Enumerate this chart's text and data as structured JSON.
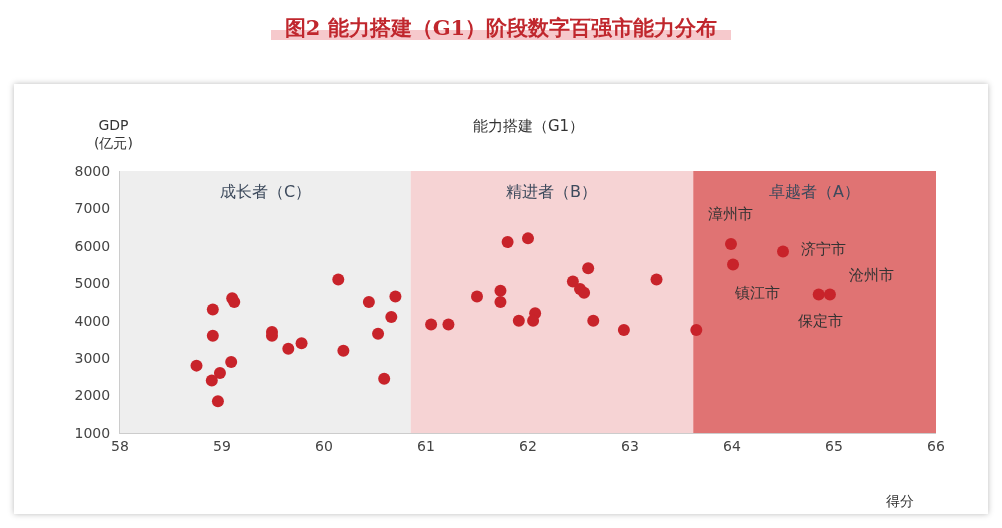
{
  "chart_data": {
    "type": "scatter",
    "title": "图2 能力搭建（G1）阶段数字百强市能力分布",
    "subtitle": "能力搭建（G1）",
    "xlabel": "得分",
    "ylabel": "GDP\n(亿元)",
    "x": [
      58.75,
      58.91,
      58.91,
      59.1,
      59.12,
      59.09,
      58.9,
      58.98,
      58.96,
      59.49,
      59.49,
      59.65,
      59.78,
      60.14,
      60.19,
      60.44,
      60.7,
      60.53,
      60.66,
      60.59,
      61.05,
      61.22,
      61.5,
      61.8,
      62.0,
      61.73,
      61.73,
      61.91,
      62.07,
      62.05,
      62.44,
      62.51,
      62.55,
      62.59,
      62.64,
      62.94,
      63.26,
      63.65,
      63.99,
      64.01,
      64.5,
      64.85,
      64.96
    ],
    "series": [
      {
        "color": "#c8232a",
        "values": [
          2800,
          4300,
          3600,
          4600,
          4500,
          2900,
          2400,
          2600,
          1850,
          3700,
          3600,
          3250,
          3400,
          5100,
          3200,
          4500,
          4650,
          3650,
          4100,
          2450,
          3900,
          3900,
          4650,
          6100,
          6200,
          4800,
          4500,
          4000,
          4200,
          4000,
          5050,
          4850,
          4750,
          5400,
          4000,
          3750,
          5100,
          3750,
          6050,
          5500,
          5850,
          4700,
          4700
        ]
      }
    ],
    "marker": "circle",
    "xlim": [
      58,
      66
    ],
    "ylim": [
      1000,
      8000
    ],
    "xticks": [
      58,
      59,
      60,
      61,
      62,
      63,
      64,
      65,
      66
    ],
    "yticks": [
      1000,
      2000,
      3000,
      4000,
      5000,
      6000,
      7000,
      8000
    ],
    "grid": false,
    "bands": [
      {
        "axis": "x",
        "from": 58,
        "to": 60.85,
        "label": "成长者（C）",
        "color": "#eeeeee"
      },
      {
        "axis": "x",
        "from": 60.85,
        "to": 63.62,
        "label": "精进者（B）",
        "color": "#f6d3d4"
      },
      {
        "axis": "x",
        "from": 63.62,
        "to": 66,
        "label": "卓越者（A）",
        "color": "#e07373"
      }
    ],
    "annotations": [
      {
        "text": "漳州市",
        "x": 63.99,
        "y": 6050
      },
      {
        "text": "镇江市",
        "x": 64.01,
        "y": 5500
      },
      {
        "text": "济宁市",
        "x": 64.5,
        "y": 5850
      },
      {
        "text": "保定市",
        "x": 64.85,
        "y": 4700
      },
      {
        "text": "沧州市",
        "x": 64.96,
        "y": 4700
      }
    ]
  }
}
